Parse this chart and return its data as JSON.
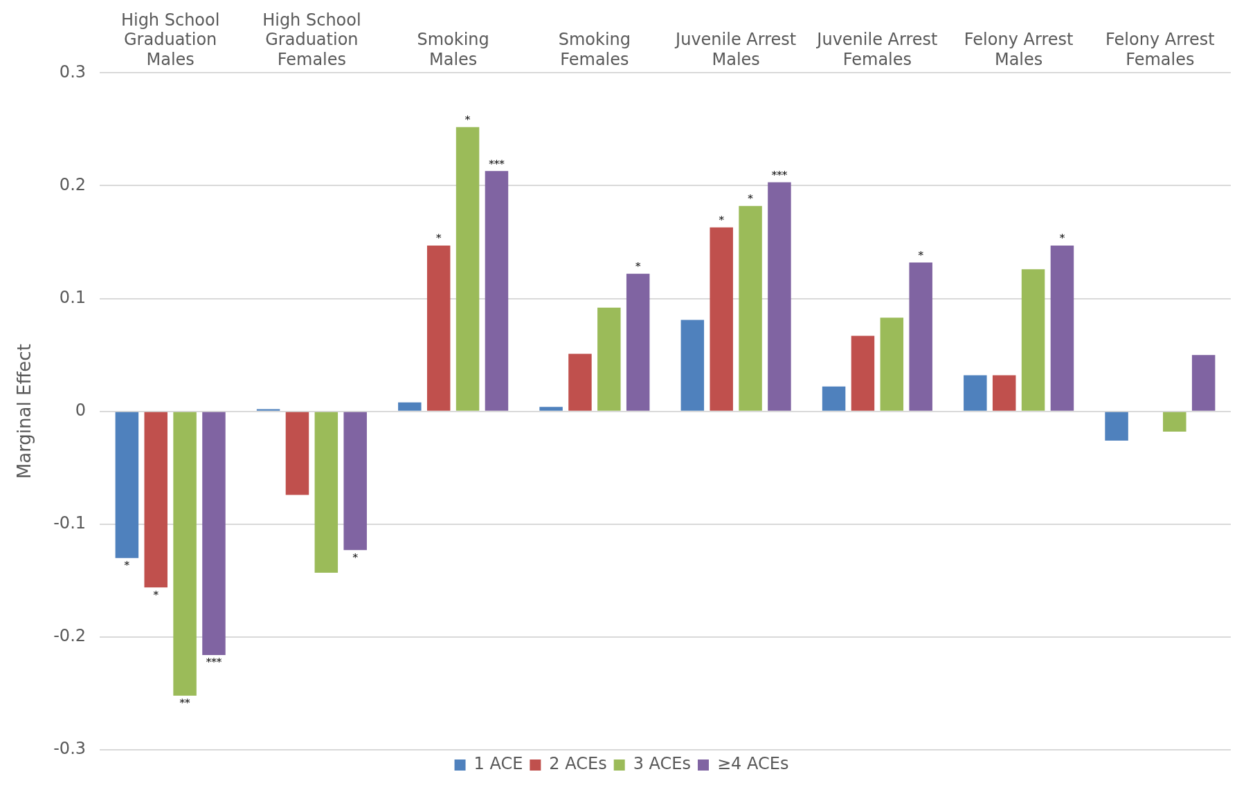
{
  "chart_data": {
    "type": "bar",
    "ylabel": "Marginal Effect",
    "categories": [
      "High School\nGraduation\nMales",
      "High School\nGraduation\nFemales",
      "Smoking\nMales",
      "Smoking\nFemales",
      "Juvenile Arrest\nMales",
      "Juvenile Arrest\nFemales",
      "Felony Arrest\nMales",
      "Felony Arrest\nFemales"
    ],
    "series": [
      {
        "name": "1 ACE",
        "color": "#4f81bd",
        "values": [
          -0.13,
          0.002,
          0.008,
          0.004,
          0.081,
          0.022,
          0.032,
          -0.026
        ],
        "value_labels": [
          "*",
          null,
          null,
          null,
          null,
          null,
          null,
          null
        ]
      },
      {
        "name": "2 ACEs",
        "color": "#c0504d",
        "values": [
          -0.156,
          -0.074,
          0.147,
          0.051,
          0.163,
          0.067,
          0.032,
          null
        ],
        "value_labels": [
          "*",
          null,
          "*",
          null,
          "*",
          null,
          null,
          null
        ]
      },
      {
        "name": "3 ACEs",
        "color": "#9bbb59",
        "values": [
          -0.252,
          -0.143,
          0.252,
          0.092,
          0.182,
          0.083,
          0.126,
          -0.018
        ],
        "value_labels": [
          "**",
          null,
          "*",
          null,
          "*",
          null,
          null,
          null
        ]
      },
      {
        "name": "≥4 ACEs",
        "color": "#8064a2",
        "values": [
          -0.216,
          -0.123,
          0.213,
          0.122,
          0.203,
          0.132,
          0.147,
          0.05
        ],
        "value_labels": [
          "***",
          "*",
          "***",
          "*",
          "***",
          "*",
          "*",
          null
        ]
      }
    ],
    "ylim": [
      -0.3,
      0.3
    ],
    "yticks": [
      -0.3,
      -0.2,
      -0.1,
      0,
      0.1,
      0.2,
      0.3
    ],
    "grid": "y",
    "legend": "bottom"
  }
}
